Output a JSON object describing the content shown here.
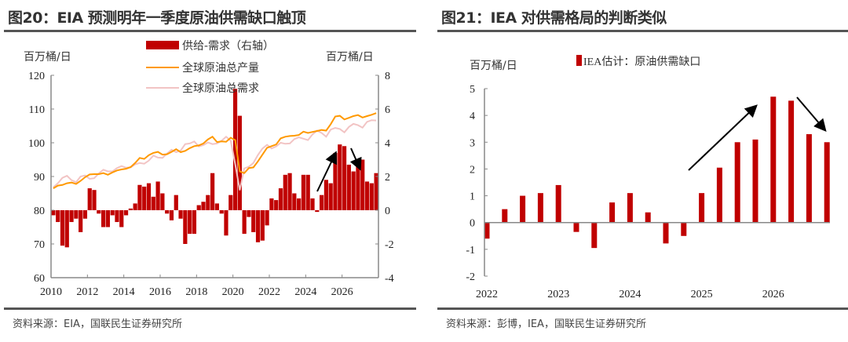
{
  "left": {
    "title": "图20：EIA 预测明年一季度原油供需缺口触顶",
    "source": "资料来源：EIA，国联民生证券研究所"
  },
  "right": {
    "title": "图21：IEA 对供需格局的判断类似",
    "source": "资料来源：彭博，IEA，国联民生证券研究所"
  },
  "chart_data": [
    {
      "type": "bar+line",
      "ylabel_left": "百万桶/日",
      "ylabel_right": "百万桶/日",
      "ylim_left": [
        60,
        120
      ],
      "ylim_right": [
        -4,
        8
      ],
      "yticks_left": [
        "60",
        "70",
        "80",
        "90",
        "100",
        "110",
        "120"
      ],
      "yticks_right": [
        "-4",
        "-2",
        "0",
        "2",
        "4",
        "6",
        "8"
      ],
      "xticks": [
        "2010",
        "2012",
        "2014",
        "2016",
        "2018",
        "2020",
        "2022",
        "2024",
        "2026"
      ],
      "x_range": [
        "2010Q1",
        "2027Q4"
      ],
      "frequency": "quarterly",
      "legend_placement": "top-center",
      "grid": false,
      "colors": {
        "bar": "#c00000",
        "production": "#ff9900",
        "demand": "#f2c4c4"
      },
      "series": [
        {
          "name": "供给-需求（右轴）",
          "axis": "right",
          "kind": "bar",
          "values": [
            -0.3,
            -0.7,
            -2.1,
            -2.2,
            -0.7,
            -0.5,
            -1.3,
            -0.5,
            1.3,
            1.2,
            -0.2,
            -1.0,
            -1.0,
            -0.3,
            -0.7,
            -1.0,
            -0.3,
            0.1,
            0.4,
            1.5,
            1.4,
            1.6,
            0.8,
            1.7,
            1.0,
            -0.2,
            -0.6,
            0.9,
            -0.5,
            -2.0,
            -1.4,
            -1.4,
            0.3,
            0.5,
            0.9,
            2.2,
            0.4,
            -0.2,
            -1.5,
            0.9,
            7.2,
            5.6,
            -1.4,
            -0.4,
            -1.3,
            -1.9,
            -1.8,
            -0.9,
            0.7,
            0.6,
            1.3,
            2.1,
            2.2,
            1.0,
            0.7,
            2.1,
            2.1,
            0.7,
            -0.1,
            0.9,
            1.8,
            1.6,
            3.4,
            3.9,
            3.8,
            2.7,
            2.3,
            3.0,
            3.0,
            1.7,
            1.6,
            2.2
          ]
        },
        {
          "name": "全球原油总产量",
          "axis": "left",
          "kind": "line",
          "values": [
            86.5,
            87.3,
            87.5,
            88.0,
            88.2,
            87.8,
            88.7,
            89.8,
            90.6,
            90.7,
            90.7,
            91.0,
            90.5,
            91.2,
            91.8,
            92.1,
            92.3,
            92.8,
            94.0,
            95.5,
            95.2,
            96.3,
            97.0,
            97.3,
            96.5,
            96.6,
            97.3,
            98.1,
            97.2,
            97.6,
            98.4,
            99.0,
            99.2,
            99.8,
            101.0,
            101.8,
            100.2,
            100.4,
            100.3,
            101.5,
            100.8,
            91.5,
            91.0,
            92.5,
            92.7,
            94.5,
            96.5,
            98.5,
            99.0,
            99.5,
            101.3,
            101.8,
            102.0,
            102.1,
            102.3,
            103.3,
            102.9,
            103.2,
            103.5,
            103.8,
            103.6,
            105.5,
            107.8,
            108.0,
            106.9,
            107.4,
            107.9,
            108.2,
            107.5,
            107.9,
            108.3,
            108.8
          ]
        },
        {
          "name": "全球原油总需求",
          "axis": "left",
          "kind": "line",
          "values": [
            86.8,
            88.0,
            89.6,
            90.2,
            88.9,
            88.3,
            90.0,
            90.3,
            89.3,
            89.5,
            90.9,
            92.0,
            91.5,
            91.5,
            92.5,
            93.1,
            92.6,
            92.7,
            93.6,
            94.0,
            93.8,
            94.7,
            96.2,
            95.6,
            95.5,
            96.8,
            97.9,
            97.2,
            97.7,
            99.6,
            99.8,
            100.4,
            98.9,
            99.3,
            100.1,
            99.6,
            99.8,
            100.6,
            101.8,
            100.6,
            93.6,
            85.9,
            92.4,
            92.9,
            94.0,
            96.4,
            98.3,
            99.4,
            98.3,
            98.9,
            100.0,
            99.7,
            99.8,
            101.1,
            101.6,
            101.2,
            100.8,
            102.5,
            103.6,
            102.9,
            101.8,
            103.9,
            104.4,
            104.1,
            103.1,
            104.7,
            105.6,
            105.2,
            104.5,
            106.2,
            106.7,
            106.6
          ]
        }
      ],
      "annotations": [
        "up-arrow 2024-2025",
        "down-arrow 2026"
      ]
    },
    {
      "type": "bar",
      "ylabel": "百万桶/日",
      "ylim": [
        -2,
        5
      ],
      "yticks": [
        "-2",
        "-1",
        "0",
        "1",
        "2",
        "3",
        "4",
        "5"
      ],
      "xticks": [
        "2022",
        "2023",
        "2024",
        "2025",
        "2026"
      ],
      "x_range": [
        "2022Q1",
        "2026Q4"
      ],
      "frequency": "quarterly",
      "legend_placement": "top",
      "grid": false,
      "colors": {
        "bar": "#c00000"
      },
      "series": [
        {
          "name": "IEA估计：原油供需缺口",
          "values": [
            -0.6,
            0.5,
            1.0,
            1.1,
            1.4,
            -0.35,
            -0.95,
            0.75,
            1.1,
            0.38,
            -0.78,
            -0.5,
            1.1,
            2.05,
            3.0,
            3.1,
            4.7,
            4.55,
            3.3,
            3.0
          ]
        }
      ],
      "annotations": [
        "up-arrow 2025-2026",
        "down-arrow 2026"
      ]
    }
  ]
}
